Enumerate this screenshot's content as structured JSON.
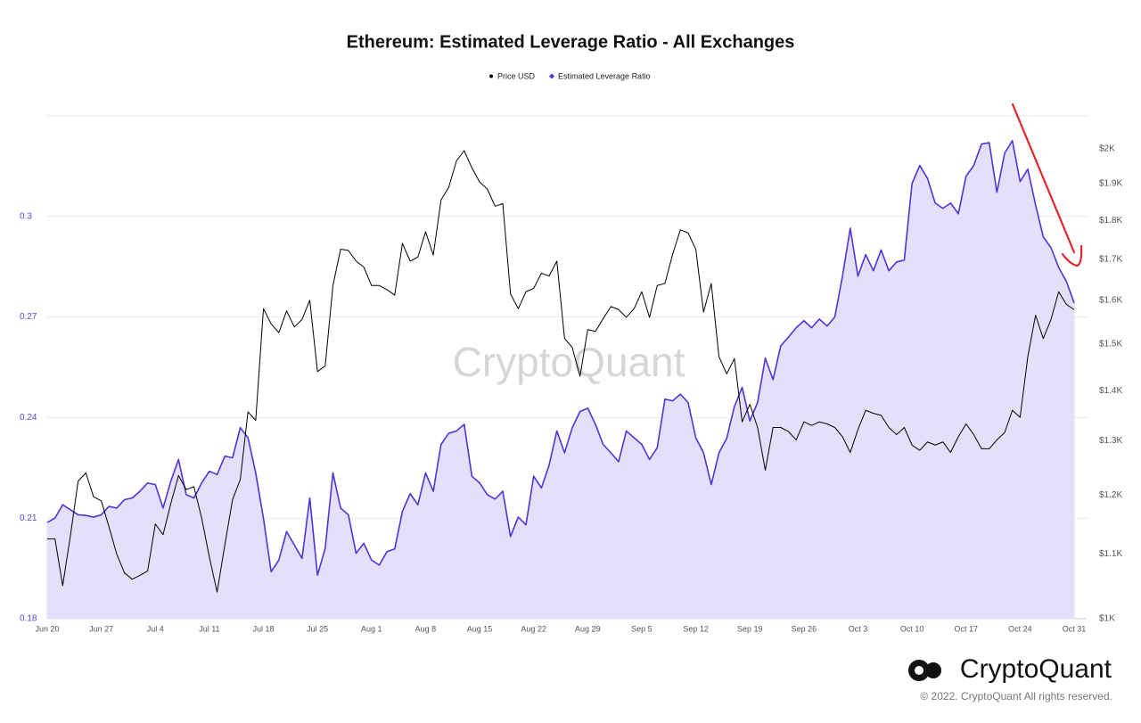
{
  "chart_data": {
    "type": "line",
    "title": "Ethereum: Estimated Leverage Ratio - All Exchanges",
    "categories": [
      "Jun 20",
      null,
      null,
      null,
      null,
      null,
      null,
      "Jun 27",
      null,
      null,
      null,
      null,
      null,
      null,
      "Jul 4",
      null,
      null,
      null,
      null,
      null,
      null,
      "Jul 11",
      null,
      null,
      null,
      null,
      null,
      null,
      "Jul 18",
      null,
      null,
      null,
      null,
      null,
      null,
      "Jul 25",
      null,
      null,
      null,
      null,
      null,
      null,
      "Aug 1",
      null,
      null,
      null,
      null,
      null,
      null,
      "Aug 8",
      null,
      null,
      null,
      null,
      null,
      null,
      "Aug 15",
      null,
      null,
      null,
      null,
      null,
      null,
      "Aug 22",
      null,
      null,
      null,
      null,
      null,
      null,
      "Aug 29",
      null,
      null,
      null,
      null,
      null,
      null,
      "Sep 5",
      null,
      null,
      null,
      null,
      null,
      null,
      "Sep 12",
      null,
      null,
      null,
      null,
      null,
      null,
      "Sep 19",
      null,
      null,
      null,
      null,
      null,
      null,
      "Sep 26",
      null,
      null,
      null,
      null,
      null,
      null,
      "Oct 3",
      null,
      null,
      null,
      null,
      null,
      null,
      "Oct 10",
      null,
      null,
      null,
      null,
      null,
      null,
      "Oct 17",
      null,
      null,
      null,
      null,
      null,
      null,
      "Oct 24",
      null,
      null,
      null,
      null,
      null,
      null,
      "Oct 31"
    ],
    "series": [
      {
        "name": "Price USD",
        "color": "#000000",
        "axis": "y2",
        "marker": "circle",
        "values": [
          1125,
          1125,
          1050,
          1130,
          1225,
          1240,
          1197,
          1190,
          1145,
          1100,
          1070,
          1060,
          1066,
          1073,
          1150,
          1132,
          1185,
          1235,
          1210,
          1215,
          1160,
          1095,
          1040,
          1115,
          1192,
          1228,
          1357,
          1340,
          1580,
          1545,
          1525,
          1575,
          1538,
          1555,
          1600,
          1440,
          1452,
          1635,
          1725,
          1722,
          1695,
          1680,
          1635,
          1635,
          1625,
          1612,
          1740,
          1695,
          1705,
          1770,
          1710,
          1855,
          1890,
          1965,
          1995,
          1945,
          1905,
          1885,
          1838,
          1845,
          1615,
          1580,
          1620,
          1628,
          1665,
          1658,
          1695,
          1512,
          1492,
          1430,
          1532,
          1528,
          1557,
          1585,
          1578,
          1560,
          1580,
          1620,
          1560,
          1635,
          1640,
          1712,
          1775,
          1767,
          1725,
          1572,
          1640,
          1472,
          1435,
          1468,
          1337,
          1372,
          1326,
          1245,
          1326,
          1326,
          1318,
          1302,
          1337,
          1330,
          1337,
          1333,
          1326,
          1308,
          1278,
          1322,
          1360,
          1354,
          1350,
          1326,
          1312,
          1326,
          1292,
          1282,
          1298,
          1292,
          1298,
          1278,
          1308,
          1333,
          1312,
          1285,
          1285,
          1302,
          1316,
          1360,
          1346,
          1472,
          1565,
          1512,
          1555,
          1620,
          1590,
          1578
        ]
      },
      {
        "name": "Estimated Leverage Ratio",
        "color": "#4b36d9",
        "fill": "#e4e0f9",
        "axis": "y",
        "marker": "diamond",
        "values": [
          0.2087,
          0.21,
          0.214,
          0.2125,
          0.211,
          0.2108,
          0.2103,
          0.211,
          0.2135,
          0.213,
          0.2155,
          0.216,
          0.218,
          0.2205,
          0.22,
          0.213,
          0.221,
          0.2275,
          0.217,
          0.216,
          0.2205,
          0.224,
          0.223,
          0.2285,
          0.228,
          0.237,
          0.234,
          0.2235,
          0.21,
          0.194,
          0.1975,
          0.206,
          0.202,
          0.198,
          0.216,
          0.193,
          0.201,
          0.2235,
          0.213,
          0.211,
          0.1995,
          0.2025,
          0.1975,
          0.196,
          0.2,
          0.2008,
          0.212,
          0.2173,
          0.214,
          0.2235,
          0.218,
          0.232,
          0.2353,
          0.236,
          0.238,
          0.2225,
          0.2205,
          0.217,
          0.2157,
          0.218,
          0.2045,
          0.2103,
          0.208,
          0.2225,
          0.219,
          0.2258,
          0.236,
          0.2295,
          0.237,
          0.2418,
          0.2428,
          0.238,
          0.232,
          0.2295,
          0.2268,
          0.236,
          0.234,
          0.232,
          0.2275,
          0.231,
          0.2455,
          0.245,
          0.247,
          0.2445,
          0.234,
          0.2295,
          0.22,
          0.2295,
          0.2338,
          0.2433,
          0.249,
          0.239,
          0.2445,
          0.2577,
          0.2513,
          0.2614,
          0.264,
          0.2668,
          0.2689,
          0.2668,
          0.2694,
          0.2673,
          0.27,
          0.2822,
          0.2965,
          0.2822,
          0.2886,
          0.2838,
          0.29,
          0.2838,
          0.2864,
          0.287,
          0.3098,
          0.3152,
          0.3114,
          0.304,
          0.3024,
          0.304,
          0.3008,
          0.312,
          0.3152,
          0.3216,
          0.322,
          0.3072,
          0.3189,
          0.3226,
          0.3104,
          0.3141,
          0.3035,
          0.2939,
          0.2907,
          0.2848,
          0.2806,
          0.2742
        ]
      }
    ],
    "ylim": [
      0.18,
      0.33
    ],
    "yticks": [
      0.18,
      0.21,
      0.24,
      0.27,
      0.3
    ],
    "y_tick_color": "#5b45d8",
    "y2lim": [
      1000,
      2100
    ],
    "y2scale": "log",
    "y2ticks": [
      {
        "value": 1000,
        "label": "$1K"
      },
      {
        "value": 1100,
        "label": "$1.1K"
      },
      {
        "value": 1200,
        "label": "$1.2K"
      },
      {
        "value": 1300,
        "label": "$1.3K"
      },
      {
        "value": 1400,
        "label": "$1.4K"
      },
      {
        "value": 1500,
        "label": "$1.5K"
      },
      {
        "value": 1600,
        "label": "$1.6K"
      },
      {
        "value": 1700,
        "label": "$1.7K"
      },
      {
        "value": 1800,
        "label": "$1.8K"
      },
      {
        "value": 1900,
        "label": "$1.9K"
      },
      {
        "value": 2000,
        "label": "$2K"
      }
    ],
    "grid": true,
    "legend": "top",
    "watermark": "CryptoQuant",
    "brand": "CryptoQuant",
    "copyright": "© 2022. CryptoQuant All rights reserved."
  }
}
